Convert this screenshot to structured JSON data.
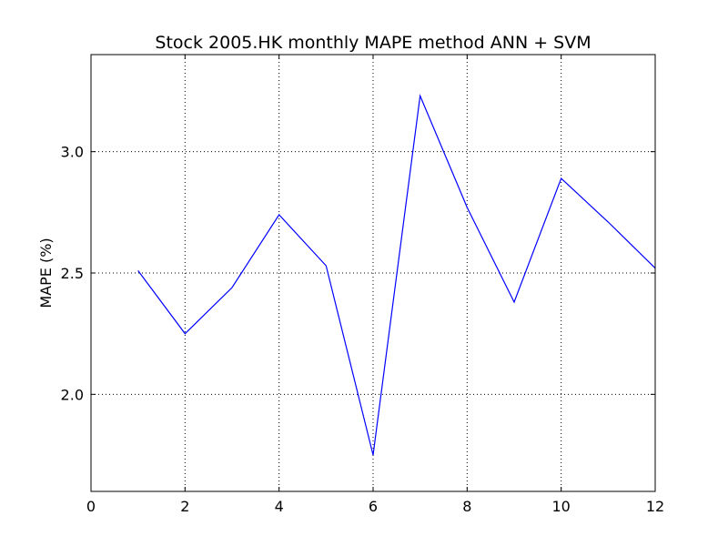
{
  "chart_data": {
    "type": "line",
    "title": "Stock 2005.HK monthly MAPE method ANN + SVM",
    "xlabel": "",
    "ylabel": "MAPE (%)",
    "xlim": [
      0,
      12
    ],
    "ylim": [
      1.6,
      3.4
    ],
    "x_ticks": [
      0,
      2,
      4,
      6,
      8,
      10,
      12
    ],
    "x_tick_labels": [
      "0",
      "2",
      "4",
      "6",
      "8",
      "10",
      "12"
    ],
    "y_ticks": [
      2.0,
      2.5,
      3.0
    ],
    "y_tick_labels": [
      "2.0",
      "2.5",
      "3.0"
    ],
    "grid": true,
    "series": [
      {
        "color": "#0000ff",
        "x": [
          1,
          2,
          3,
          4,
          5,
          6,
          7,
          8,
          9,
          10,
          11,
          12
        ],
        "values": [
          2.51,
          2.25,
          2.44,
          2.74,
          2.53,
          1.75,
          3.23,
          2.77,
          2.38,
          2.89,
          2.71,
          2.52
        ]
      }
    ]
  }
}
